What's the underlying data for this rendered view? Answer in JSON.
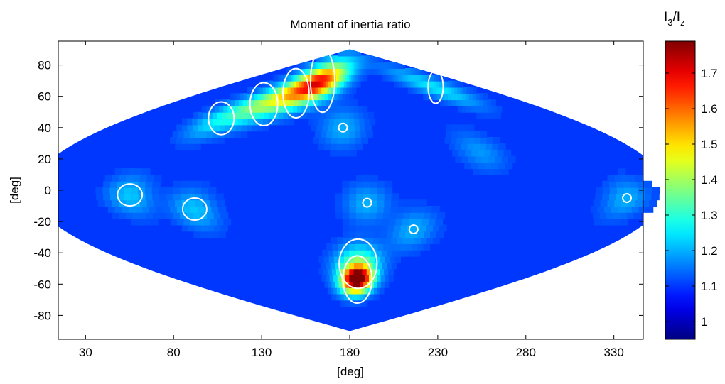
{
  "chart_data": {
    "type": "heatmap",
    "projection": "sinusoidal",
    "title": "Moment of inertia ratio",
    "xlabel": "[deg]",
    "ylabel": "[deg]",
    "xlim": [
      0,
      360
    ],
    "ylim": [
      -90,
      90
    ],
    "x_ticks": [
      30,
      80,
      130,
      180,
      230,
      280,
      330
    ],
    "x_tick_labels": [
      "30",
      "80",
      "130",
      "180",
      "230",
      "280",
      "330"
    ],
    "y_ticks": [
      80,
      60,
      40,
      20,
      0,
      -20,
      -40,
      -60,
      -80
    ],
    "y_tick_labels": [
      "80",
      "60",
      "40",
      "20",
      "0",
      "-20",
      "-40",
      "-60",
      "-80"
    ],
    "grid": false,
    "colormap": "jet",
    "colorbar": {
      "label_main": "I",
      "label_sub1": "3",
      "label_sep": "/I",
      "label_sub2": "z",
      "range": [
        0.95,
        1.79
      ],
      "ticks": [
        1.7,
        1.6,
        1.5,
        1.4,
        1.3,
        1.2,
        1.1,
        1.0
      ],
      "tick_labels": [
        "1.7",
        "1.6",
        "1.5",
        "1.4",
        "1.3",
        "1.2",
        "1.1",
        "1"
      ]
    },
    "background_value": 1.1,
    "contour_level": 1.2,
    "contour_color": "#ffffff",
    "hotspots": [
      {
        "lon": 188,
        "lat": -57,
        "value": 1.79
      },
      {
        "lon": 187,
        "lat": -47,
        "value": 1.35
      },
      {
        "lon": 135,
        "lat": 70,
        "value": 1.55
      },
      {
        "lon": 115,
        "lat": 62,
        "value": 1.35
      },
      {
        "lon": 95,
        "lat": 55,
        "value": 1.3
      },
      {
        "lon": 75,
        "lat": 46,
        "value": 1.25
      },
      {
        "lon": 300,
        "lat": 66,
        "value": 1.25
      },
      {
        "lon": 90,
        "lat": -12,
        "value": 1.22
      },
      {
        "lon": 55,
        "lat": -3,
        "value": 1.22
      },
      {
        "lon": 190,
        "lat": -8,
        "value": 1.2
      },
      {
        "lon": 220,
        "lat": -25,
        "value": 1.2
      },
      {
        "lon": 175,
        "lat": 40,
        "value": 1.2
      },
      {
        "lon": 262,
        "lat": 25,
        "value": 1.18
      },
      {
        "lon": 338,
        "lat": -5,
        "value": 1.2
      }
    ]
  }
}
